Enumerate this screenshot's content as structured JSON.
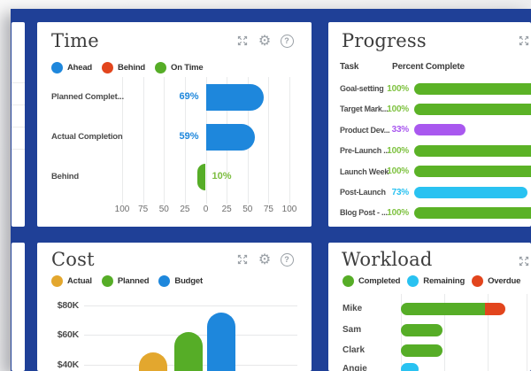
{
  "glyphs": {
    "gear": "⚙",
    "help": "?"
  },
  "theme": {
    "frame_blue": "#1f4097",
    "chart_blue": "#1e87dc",
    "green_bar": "#5bb226",
    "green_text": "#7fc241",
    "red": "#e2451d",
    "purple": "#a958ef",
    "cyan": "#29c2f1",
    "yellow": "#e3a72e"
  },
  "panels": {
    "time": {
      "title": "Time",
      "legend": [
        {
          "label": "Ahead",
          "color": "#1e87dc"
        },
        {
          "label": "Behind",
          "color": "#e2451d"
        },
        {
          "label": "On Time",
          "color": "#56ad27"
        }
      ]
    },
    "progress": {
      "title": "Progress",
      "columns": [
        "Task",
        "Percent Complete"
      ]
    },
    "cost": {
      "title": "Cost",
      "legend": [
        {
          "label": "Actual",
          "color": "#e3a72e"
        },
        {
          "label": "Planned",
          "color": "#56ad27"
        },
        {
          "label": "Budget",
          "color": "#1e87dc"
        }
      ]
    },
    "workload": {
      "title": "Workload",
      "legend": [
        {
          "label": "Completed",
          "color": "#56ad27"
        },
        {
          "label": "Remaining",
          "color": "#29c2f1"
        },
        {
          "label": "Overdue",
          "color": "#e2451d"
        }
      ]
    }
  },
  "chart_data": [
    {
      "id": "time",
      "type": "bar",
      "orientation": "horizontal-diverging",
      "title": "Time",
      "categories": [
        "Planned Complet...",
        "Actual Completion",
        "Behind"
      ],
      "values": [
        69,
        59,
        -10
      ],
      "value_labels": [
        "69%",
        "59%",
        "10%"
      ],
      "bar_colors": [
        "#1e87dc",
        "#1e87dc",
        "#56ad27"
      ],
      "label_colors": [
        "#1e87dc",
        "#1e87dc",
        "#7cbd3f"
      ],
      "axis_ticks": [
        "100",
        "75",
        "50",
        "25",
        "0",
        "25",
        "50",
        "75",
        "100"
      ],
      "axis_range": [
        -100,
        100
      ],
      "unit": "percent",
      "grid": true
    },
    {
      "id": "progress",
      "type": "table",
      "title": "Progress",
      "columns": [
        "Task",
        "Percent Complete"
      ],
      "rows": [
        {
          "task": "Goal-setting",
          "pct": 100,
          "pct_label": "100%",
          "bar_color": "#5bb226",
          "text_color": "#7fc241"
        },
        {
          "task": "Target Mark...",
          "pct": 100,
          "pct_label": "100%",
          "bar_color": "#5bb226",
          "text_color": "#7fc241"
        },
        {
          "task": "Product Dev...",
          "pct": 33,
          "pct_label": "33%",
          "bar_color": "#a958ef",
          "text_color": "#a958ef"
        },
        {
          "task": "Pre-Launch ...",
          "pct": 100,
          "pct_label": "100%",
          "bar_color": "#5bb226",
          "text_color": "#7fc241"
        },
        {
          "task": "Launch Week",
          "pct": 100,
          "pct_label": "100%",
          "bar_color": "#5bb226",
          "text_color": "#7fc241"
        },
        {
          "task": "Post-Launch",
          "pct": 73,
          "pct_label": "73%",
          "bar_color": "#29c2f1",
          "text_color": "#29c2f1"
        },
        {
          "task": "Blog Post - ...",
          "pct": 100,
          "pct_label": "100%",
          "bar_color": "#5bb226",
          "text_color": "#7fc241"
        }
      ]
    },
    {
      "id": "cost",
      "type": "bar",
      "orientation": "vertical",
      "title": "Cost",
      "categories": [
        "Actual",
        "Planned",
        "Budget"
      ],
      "values": [
        48,
        62,
        75
      ],
      "colors": [
        "#e3a72e",
        "#56ad27",
        "#1e87dc"
      ],
      "unit": "$K",
      "y_ticks": [
        {
          "label": "$80K",
          "value": 80
        },
        {
          "label": "$60K",
          "value": 60
        },
        {
          "label": "$40K",
          "value": 40
        }
      ],
      "note": "bars cropped at bottom edge of screenshot; values estimated from gridlines"
    },
    {
      "id": "workload",
      "type": "bar",
      "orientation": "horizontal-stacked",
      "title": "Workload",
      "categories": [
        "Mike",
        "Sam",
        "Clark",
        "Angie"
      ],
      "series": [
        {
          "name": "Completed",
          "color": "#56ad27",
          "values": [
            67,
            33,
            33,
            0
          ]
        },
        {
          "name": "Remaining",
          "color": "#29c2f1",
          "values": [
            0,
            0,
            0,
            14
          ]
        },
        {
          "name": "Overdue",
          "color": "#e2451d",
          "values": [
            16,
            0,
            0,
            0
          ]
        }
      ],
      "unit": "relative units (no axis labels visible; estimated)",
      "note": "Angie row cropped at bottom edge of screenshot"
    }
  ]
}
